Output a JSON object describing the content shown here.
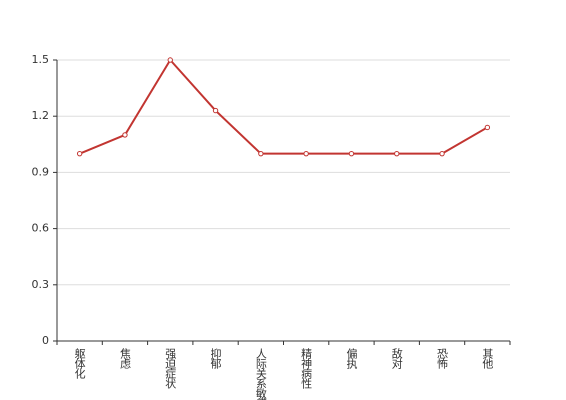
{
  "chart_data": {
    "type": "line",
    "categories": [
      "躯体化",
      "焦虑",
      "强迫症状",
      "抑郁",
      "人际关系敏感",
      "精神病性",
      "偏执",
      "敌对",
      "恐怖",
      "其他"
    ],
    "values": [
      1.0,
      1.1,
      1.5,
      1.23,
      1.0,
      1.0,
      1.0,
      1.0,
      1.0,
      1.14
    ],
    "color": "#c23531",
    "ylim": [
      0,
      1.5
    ],
    "yticks": [
      0,
      0.3,
      0.6,
      0.9,
      1.2,
      1.5
    ],
    "grid": true
  }
}
